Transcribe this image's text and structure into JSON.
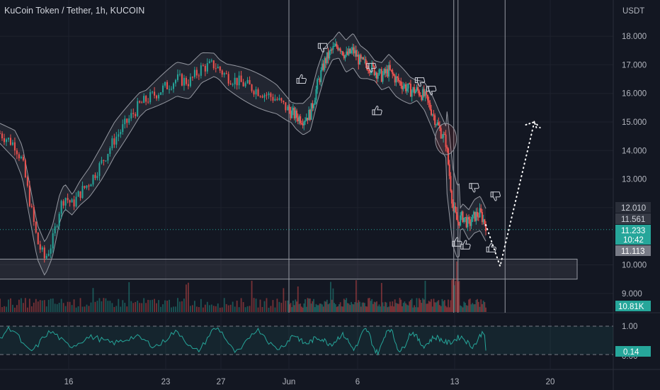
{
  "header": {
    "title": "KuCoin Token / Tether, 1h, KUCOIN",
    "currency": "USDT"
  },
  "colors": {
    "background": "#131722",
    "up": "#26a69a",
    "down": "#ef5350",
    "band": "#9598a1",
    "price_line": "#26a69a",
    "osc": "#26a69a"
  },
  "badges": {
    "upper": "12.010",
    "mid": "11.561",
    "last_price": "11.233",
    "countdown": "10:42",
    "lower": "11.113",
    "volume": "10.81K",
    "oscillator": "0.14"
  },
  "chart_data": {
    "type": "candlestick",
    "symbol": "KuCoin Token / Tether",
    "interval": "1h",
    "exchange": "KUCOIN",
    "y_axis": {
      "range": [
        8.6,
        18.9
      ],
      "ticks": [
        "9.000",
        "10.000",
        "12.000",
        "13.000",
        "14.000",
        "15.000",
        "16.000",
        "17.000",
        "18.000"
      ]
    },
    "x_axis": {
      "ticks": [
        "16",
        "23",
        "27",
        "Jun",
        "6",
        "13",
        "20"
      ]
    },
    "close_path": [
      [
        8.4,
        14.6
      ],
      [
        9.0,
        14.2
      ],
      [
        9.3,
        13.6
      ],
      [
        9.6,
        12.2
      ],
      [
        9.9,
        10.8
      ],
      [
        10.2,
        10.2
      ],
      [
        10.5,
        10.8
      ],
      [
        10.8,
        12.0
      ],
      [
        11.0,
        12.4
      ],
      [
        11.3,
        12.1
      ],
      [
        11.6,
        12.5
      ],
      [
        12.0,
        12.9
      ],
      [
        12.5,
        13.6
      ],
      [
        13.0,
        14.4
      ],
      [
        13.5,
        15.0
      ],
      [
        14.0,
        15.6
      ],
      [
        14.5,
        15.9
      ],
      [
        15.0,
        16.2
      ],
      [
        15.5,
        16.5
      ],
      [
        16.0,
        16.4
      ],
      [
        16.5,
        16.9
      ],
      [
        17.0,
        17.0
      ],
      [
        17.5,
        16.6
      ],
      [
        18.0,
        16.4
      ],
      [
        18.5,
        16.2
      ],
      [
        19.0,
        16.0
      ],
      [
        19.5,
        15.8
      ],
      [
        20.0,
        15.4
      ],
      [
        20.5,
        15.2
      ],
      [
        21.0,
        15.1
      ],
      [
        21.5,
        15.3
      ],
      [
        22.0,
        16.3
      ],
      [
        22.5,
        17.1
      ],
      [
        23.0,
        17.5
      ],
      [
        23.5,
        17.7
      ],
      [
        24.0,
        17.3
      ],
      [
        24.5,
        17.5
      ],
      [
        25.0,
        17.1
      ],
      [
        25.5,
        17.0
      ],
      [
        26.0,
        16.8
      ],
      [
        26.5,
        16.6
      ],
      [
        27.0,
        16.8
      ],
      [
        27.5,
        16.5
      ],
      [
        28.0,
        16.3
      ],
      [
        28.5,
        16.1
      ],
      [
        29.0,
        16.1
      ],
      [
        29.5,
        15.9
      ],
      [
        30.0,
        15.4
      ],
      [
        30.5,
        14.8
      ],
      [
        31.0,
        14.3
      ],
      [
        31.5,
        12.0
      ],
      [
        31.8,
        11.5
      ],
      [
        32.2,
        11.7
      ],
      [
        32.6,
        11.4
      ],
      [
        33.0,
        11.7
      ],
      [
        33.4,
        11.8
      ],
      [
        33.8,
        11.4
      ]
    ],
    "projection_path": [
      [
        33.8,
        11.4
      ],
      [
        34.8,
        9.95
      ],
      [
        37.2,
        15.0
      ],
      [
        37.6,
        14.8
      ]
    ],
    "support_zone": {
      "x": [
        1.0,
        40.2
      ],
      "y": [
        9.5,
        10.2
      ]
    },
    "vertical_lines_x": [
      20.0,
      31.55,
      31.85,
      35.15
    ],
    "ellipse_center": [
      31.0,
      14.4
    ],
    "thumbs": [
      {
        "x": 22.4,
        "y": 17.6,
        "kind": "down"
      },
      {
        "x": 25.8,
        "y": 16.9,
        "kind": "down"
      },
      {
        "x": 20.9,
        "y": 16.5,
        "kind": "up"
      },
      {
        "x": 29.2,
        "y": 16.4,
        "kind": "down"
      },
      {
        "x": 30.0,
        "y": 16.1,
        "kind": "down"
      },
      {
        "x": 26.2,
        "y": 15.4,
        "kind": "up"
      },
      {
        "x": 33.0,
        "y": 12.7,
        "kind": "down"
      },
      {
        "x": 34.5,
        "y": 12.4,
        "kind": "down"
      },
      {
        "x": 31.8,
        "y": 10.8,
        "kind": "up"
      },
      {
        "x": 32.4,
        "y": 10.7,
        "kind": "up"
      },
      {
        "x": 34.2,
        "y": 10.6,
        "kind": "up"
      }
    ],
    "oscillator": {
      "range": [
        0,
        1
      ],
      "upper_level": "1.00",
      "lower_level": "0.00",
      "last": 0.14
    }
  }
}
